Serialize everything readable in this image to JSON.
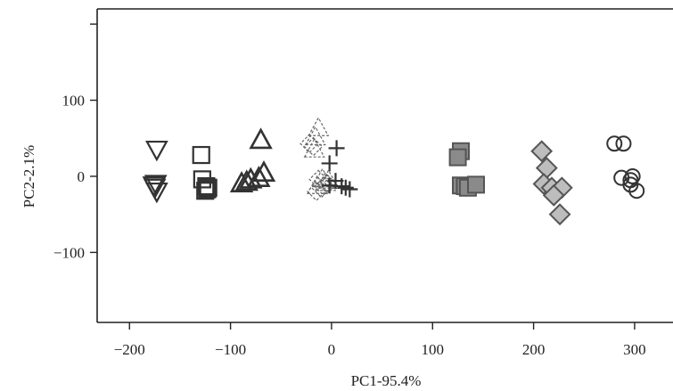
{
  "chart_data": {
    "type": "scatter",
    "xlabel": "PC1-95.4%",
    "ylabel": "PC2-2.1%",
    "xlim": [
      -232,
      338
    ],
    "ylim": [
      -192,
      220
    ],
    "xticks": [
      -200,
      -100,
      0,
      100,
      200,
      300
    ],
    "xtick_labels": [
      "−200",
      "−100",
      "0",
      "100",
      "200",
      "300"
    ],
    "yticks": [
      -100,
      0,
      100
    ],
    "ytick_labels": [
      "−100",
      "0",
      "100"
    ],
    "grid": false,
    "series": [
      {
        "marker": "triangle-down-open",
        "color": "#333333",
        "points": [
          [
            -173,
            35
          ],
          [
            -174,
            -10
          ],
          [
            -175,
            -15
          ],
          [
            -173,
            -20
          ],
          [
            -176,
            -12
          ]
        ]
      },
      {
        "marker": "square-open",
        "color": "#333333",
        "points": [
          [
            -129,
            28
          ],
          [
            -128,
            -4
          ],
          [
            -124,
            -13
          ],
          [
            -125,
            -19
          ],
          [
            -123,
            -17
          ],
          [
            -122,
            -15
          ]
        ]
      },
      {
        "marker": "triangle-up-open-bold",
        "color": "#333333",
        "points": [
          [
            -70,
            48
          ],
          [
            -67,
            5
          ],
          [
            -72,
            -2
          ],
          [
            -80,
            -4
          ],
          [
            -84,
            -7
          ],
          [
            -89,
            -9
          ]
        ]
      },
      {
        "marker": "triangle-up-dashed",
        "color": "#666666",
        "points": [
          [
            -13,
            64
          ],
          [
            -16,
            52
          ],
          [
            -17,
            36
          ],
          [
            -9,
            -3
          ],
          [
            -6,
            -8
          ],
          [
            -14,
            -12
          ],
          [
            -3,
            -5
          ]
        ]
      },
      {
        "marker": "diamond-dashed",
        "color": "#666666",
        "points": [
          [
            -22,
            43
          ],
          [
            -18,
            39
          ],
          [
            -13,
            -4
          ],
          [
            -8,
            -13
          ],
          [
            -15,
            -20
          ],
          [
            -10,
            -16
          ],
          [
            -4,
            -10
          ]
        ]
      },
      {
        "marker": "plus",
        "color": "#333333",
        "points": [
          [
            5,
            37
          ],
          [
            -2,
            17
          ],
          [
            4,
            -6
          ],
          [
            10,
            -13
          ],
          [
            18,
            -17
          ],
          [
            14,
            -15
          ],
          [
            -2,
            -12
          ]
        ]
      },
      {
        "marker": "square-filled",
        "color": "#555555",
        "points": [
          [
            128,
            33
          ],
          [
            125,
            25
          ],
          [
            128,
            -12
          ],
          [
            132,
            -13
          ],
          [
            135,
            -15
          ],
          [
            143,
            -11
          ]
        ]
      },
      {
        "marker": "diamond-filled",
        "color": "#555555",
        "points": [
          [
            208,
            33
          ],
          [
            213,
            11
          ],
          [
            210,
            -10
          ],
          [
            218,
            -15
          ],
          [
            228,
            -15
          ],
          [
            220,
            -25
          ],
          [
            226,
            -50
          ]
        ]
      },
      {
        "marker": "circle-open",
        "color": "#333333",
        "points": [
          [
            280,
            43
          ],
          [
            289,
            43
          ],
          [
            287,
            -2
          ],
          [
            296,
            -5
          ],
          [
            298,
            0
          ],
          [
            296,
            -11
          ],
          [
            302,
            -19
          ]
        ]
      }
    ]
  }
}
